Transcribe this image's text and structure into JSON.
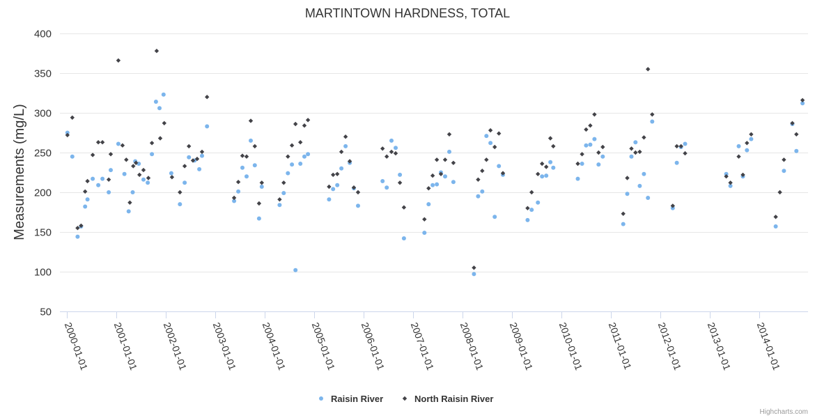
{
  "chart_data": {
    "type": "scatter",
    "title": "MARTINTOWN HARDNESS, TOTAL",
    "xlabel": "",
    "ylabel": "Measurements (mg/L)",
    "ylim": [
      50,
      400
    ],
    "yticks": [
      50,
      100,
      150,
      200,
      250,
      300,
      350,
      400
    ],
    "xlim": [
      "2000-01-01",
      "2014-12-31"
    ],
    "xticks": [
      "2000-01-01",
      "2001-01-01",
      "2002-01-01",
      "2003-01-01",
      "2004-01-01",
      "2005-01-01",
      "2006-01-01",
      "2007-01-01",
      "2008-01-01",
      "2009-01-01",
      "2010-01-01",
      "2011-01-01",
      "2012-01-01",
      "2013-01-01",
      "2014-01-01"
    ],
    "grid": "horizontal",
    "legend_position": "bottom-center",
    "series": [
      {
        "name": "Raisin River",
        "color": "#7cb5ec",
        "marker": "circle",
        "points": [
          [
            "2000-01-05",
            275
          ],
          [
            "2000-02-10",
            245
          ],
          [
            "2000-03-20",
            144
          ],
          [
            "2000-04-15",
            157
          ],
          [
            "2000-05-15",
            182
          ],
          [
            "2000-06-01",
            191
          ],
          [
            "2000-07-10",
            217
          ],
          [
            "2000-08-20",
            209
          ],
          [
            "2000-09-20",
            217
          ],
          [
            "2000-11-05",
            200
          ],
          [
            "2000-11-20",
            228
          ],
          [
            "2001-01-15",
            261
          ],
          [
            "2001-03-01",
            223
          ],
          [
            "2001-04-01",
            176
          ],
          [
            "2001-05-01",
            200
          ],
          [
            "2001-05-20",
            239
          ],
          [
            "2001-06-15",
            236
          ],
          [
            "2001-07-20",
            216
          ],
          [
            "2001-08-20",
            212
          ],
          [
            "2001-09-20",
            248
          ],
          [
            "2001-10-20",
            314
          ],
          [
            "2001-11-15",
            306
          ],
          [
            "2001-12-15",
            323
          ],
          [
            "2002-02-10",
            224
          ],
          [
            "2002-04-15",
            185
          ],
          [
            "2002-05-20",
            212
          ],
          [
            "2002-06-20",
            244
          ],
          [
            "2002-08-01",
            240
          ],
          [
            "2002-09-05",
            229
          ],
          [
            "2002-09-25",
            246
          ],
          [
            "2002-11-01",
            283
          ],
          [
            "2003-05-20",
            189
          ],
          [
            "2003-06-20",
            201
          ],
          [
            "2003-07-20",
            231
          ],
          [
            "2003-08-20",
            220
          ],
          [
            "2003-09-20",
            265
          ],
          [
            "2003-10-20",
            234
          ],
          [
            "2003-11-20",
            167
          ],
          [
            "2003-12-10",
            207
          ],
          [
            "2004-04-20",
            184
          ],
          [
            "2004-05-20",
            199
          ],
          [
            "2004-06-20",
            224
          ],
          [
            "2004-07-20",
            235
          ],
          [
            "2004-08-15",
            102
          ],
          [
            "2004-09-20",
            236
          ],
          [
            "2004-10-20",
            245
          ],
          [
            "2004-11-15",
            248
          ],
          [
            "2005-04-20",
            191
          ],
          [
            "2005-05-20",
            204
          ],
          [
            "2005-06-20",
            209
          ],
          [
            "2005-07-20",
            230
          ],
          [
            "2005-08-20",
            258
          ],
          [
            "2005-09-20",
            237
          ],
          [
            "2005-10-20",
            205
          ],
          [
            "2005-11-20",
            183
          ],
          [
            "2006-05-20",
            214
          ],
          [
            "2006-06-20",
            206
          ],
          [
            "2006-07-25",
            265
          ],
          [
            "2006-08-25",
            256
          ],
          [
            "2006-09-25",
            222
          ],
          [
            "2006-10-25",
            142
          ],
          [
            "2007-03-25",
            149
          ],
          [
            "2007-04-25",
            185
          ],
          [
            "2007-05-25",
            209
          ],
          [
            "2007-06-25",
            210
          ],
          [
            "2007-07-25",
            225
          ],
          [
            "2007-08-25",
            220
          ],
          [
            "2007-09-25",
            251
          ],
          [
            "2007-10-25",
            213
          ],
          [
            "2008-03-25",
            97
          ],
          [
            "2008-04-25",
            195
          ],
          [
            "2008-05-25",
            201
          ],
          [
            "2008-06-25",
            271
          ],
          [
            "2008-07-25",
            262
          ],
          [
            "2008-08-25",
            169
          ],
          [
            "2008-09-25",
            233
          ],
          [
            "2008-10-25",
            222
          ],
          [
            "2009-04-25",
            165
          ],
          [
            "2009-05-25",
            178
          ],
          [
            "2009-07-10",
            187
          ],
          [
            "2009-08-10",
            220
          ],
          [
            "2009-09-10",
            221
          ],
          [
            "2009-10-10",
            238
          ],
          [
            "2009-11-01",
            231
          ],
          [
            "2010-05-01",
            217
          ],
          [
            "2010-06-01",
            236
          ],
          [
            "2010-07-01",
            259
          ],
          [
            "2010-08-01",
            260
          ],
          [
            "2010-09-01",
            267
          ],
          [
            "2010-10-01",
            235
          ],
          [
            "2010-11-01",
            245
          ],
          [
            "2011-04-01",
            160
          ],
          [
            "2011-05-01",
            198
          ],
          [
            "2011-06-01",
            245
          ],
          [
            "2011-07-01",
            263
          ],
          [
            "2011-08-01",
            208
          ],
          [
            "2011-09-01",
            223
          ],
          [
            "2011-10-01",
            193
          ],
          [
            "2011-11-01",
            289
          ],
          [
            "2012-04-01",
            180
          ],
          [
            "2012-05-01",
            237
          ],
          [
            "2012-06-01",
            257
          ],
          [
            "2012-07-01",
            261
          ],
          [
            "2013-05-01",
            223
          ],
          [
            "2013-06-01",
            208
          ],
          [
            "2013-08-01",
            258
          ],
          [
            "2013-09-01",
            220
          ],
          [
            "2013-10-01",
            253
          ],
          [
            "2013-11-01",
            267
          ],
          [
            "2014-05-01",
            157
          ],
          [
            "2014-07-01",
            227
          ],
          [
            "2014-09-01",
            286
          ],
          [
            "2014-10-01",
            252
          ],
          [
            "2014-11-15",
            312
          ]
        ]
      },
      {
        "name": "North Raisin River",
        "color": "#434348",
        "marker": "diamond",
        "points": [
          [
            "2000-01-05",
            272
          ],
          [
            "2000-02-10",
            294
          ],
          [
            "2000-03-20",
            155
          ],
          [
            "2000-04-15",
            158
          ],
          [
            "2000-05-15",
            201
          ],
          [
            "2000-06-01",
            214
          ],
          [
            "2000-07-10",
            247
          ],
          [
            "2000-08-20",
            263
          ],
          [
            "2000-09-20",
            263
          ],
          [
            "2000-11-05",
            216
          ],
          [
            "2000-11-20",
            248
          ],
          [
            "2001-01-15",
            366
          ],
          [
            "2001-02-15",
            259
          ],
          [
            "2001-03-15",
            241
          ],
          [
            "2001-04-10",
            187
          ],
          [
            "2001-05-05",
            233
          ],
          [
            "2001-05-25",
            237
          ],
          [
            "2001-06-20",
            222
          ],
          [
            "2001-07-20",
            228
          ],
          [
            "2001-08-25",
            218
          ],
          [
            "2001-09-20",
            262
          ],
          [
            "2001-10-25",
            378
          ],
          [
            "2001-11-20",
            268
          ],
          [
            "2001-12-20",
            287
          ],
          [
            "2002-02-15",
            219
          ],
          [
            "2002-04-15",
            200
          ],
          [
            "2002-05-20",
            233
          ],
          [
            "2002-06-20",
            258
          ],
          [
            "2002-07-20",
            240
          ],
          [
            "2002-08-20",
            242
          ],
          [
            "2002-09-25",
            251
          ],
          [
            "2002-11-01",
            320
          ],
          [
            "2003-05-20",
            193
          ],
          [
            "2003-06-20",
            213
          ],
          [
            "2003-07-20",
            246
          ],
          [
            "2003-08-20",
            245
          ],
          [
            "2003-09-20",
            290
          ],
          [
            "2003-10-20",
            258
          ],
          [
            "2003-11-20",
            186
          ],
          [
            "2003-12-10",
            212
          ],
          [
            "2004-04-20",
            191
          ],
          [
            "2004-05-20",
            212
          ],
          [
            "2004-06-20",
            245
          ],
          [
            "2004-07-20",
            259
          ],
          [
            "2004-08-15",
            286
          ],
          [
            "2004-09-20",
            263
          ],
          [
            "2004-10-20",
            284
          ],
          [
            "2004-11-15",
            291
          ],
          [
            "2005-04-20",
            207
          ],
          [
            "2005-05-20",
            222
          ],
          [
            "2005-06-20",
            223
          ],
          [
            "2005-07-20",
            251
          ],
          [
            "2005-08-20",
            270
          ],
          [
            "2005-09-20",
            239
          ],
          [
            "2005-10-20",
            206
          ],
          [
            "2005-11-20",
            200
          ],
          [
            "2006-05-20",
            255
          ],
          [
            "2006-06-20",
            245
          ],
          [
            "2006-07-25",
            251
          ],
          [
            "2006-08-25",
            249
          ],
          [
            "2006-09-25",
            212
          ],
          [
            "2006-10-25",
            181
          ],
          [
            "2007-03-25",
            166
          ],
          [
            "2007-04-25",
            205
          ],
          [
            "2007-05-25",
            221
          ],
          [
            "2007-06-25",
            241
          ],
          [
            "2007-07-25",
            223
          ],
          [
            "2007-08-25",
            241
          ],
          [
            "2007-09-25",
            273
          ],
          [
            "2007-10-25",
            237
          ],
          [
            "2008-03-25",
            105
          ],
          [
            "2008-04-25",
            216
          ],
          [
            "2008-05-25",
            227
          ],
          [
            "2008-06-25",
            241
          ],
          [
            "2008-07-25",
            278
          ],
          [
            "2008-08-25",
            257
          ],
          [
            "2008-09-25",
            274
          ],
          [
            "2008-10-25",
            224
          ],
          [
            "2009-04-25",
            180
          ],
          [
            "2009-05-25",
            200
          ],
          [
            "2009-07-10",
            223
          ],
          [
            "2009-08-10",
            236
          ],
          [
            "2009-09-10",
            232
          ],
          [
            "2009-10-10",
            268
          ],
          [
            "2009-11-01",
            258
          ],
          [
            "2010-05-01",
            236
          ],
          [
            "2010-06-01",
            248
          ],
          [
            "2010-07-01",
            279
          ],
          [
            "2010-08-01",
            284
          ],
          [
            "2010-09-01",
            298
          ],
          [
            "2010-10-01",
            250
          ],
          [
            "2010-11-01",
            257
          ],
          [
            "2011-04-01",
            173
          ],
          [
            "2011-05-01",
            218
          ],
          [
            "2011-06-01",
            255
          ],
          [
            "2011-07-01",
            250
          ],
          [
            "2011-08-01",
            251
          ],
          [
            "2011-09-01",
            269
          ],
          [
            "2011-10-01",
            355
          ],
          [
            "2011-11-01",
            298
          ],
          [
            "2012-04-01",
            183
          ],
          [
            "2012-05-01",
            258
          ],
          [
            "2012-06-01",
            258
          ],
          [
            "2012-07-01",
            249
          ],
          [
            "2013-05-01",
            220
          ],
          [
            "2013-06-01",
            212
          ],
          [
            "2013-08-01",
            245
          ],
          [
            "2013-09-01",
            222
          ],
          [
            "2013-10-01",
            262
          ],
          [
            "2013-11-01",
            273
          ],
          [
            "2014-05-01",
            169
          ],
          [
            "2014-06-01",
            200
          ],
          [
            "2014-07-01",
            241
          ],
          [
            "2014-09-01",
            287
          ],
          [
            "2014-10-01",
            273
          ],
          [
            "2014-11-15",
            316
          ]
        ]
      }
    ]
  },
  "credits": "Highcharts.com"
}
